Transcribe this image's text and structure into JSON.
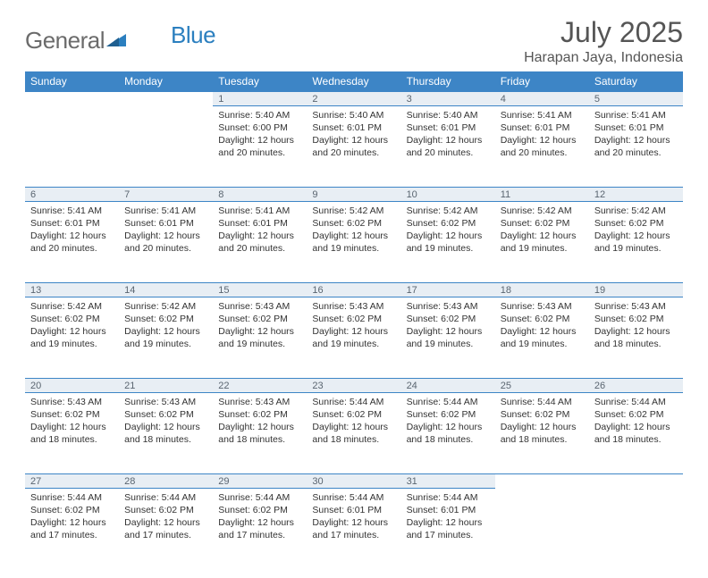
{
  "logo": {
    "part1": "General",
    "part2": "Blue"
  },
  "title": "July 2025",
  "location": "Harapan Jaya, Indonesia",
  "header_bg": "#3d85c6",
  "daynum_bg": "#e8eef4",
  "columns": [
    "Sunday",
    "Monday",
    "Tuesday",
    "Wednesday",
    "Thursday",
    "Friday",
    "Saturday"
  ],
  "weeks": [
    [
      null,
      null,
      {
        "n": "1",
        "sunrise": "5:40 AM",
        "sunset": "6:00 PM",
        "daylight": "12 hours and 20 minutes."
      },
      {
        "n": "2",
        "sunrise": "5:40 AM",
        "sunset": "6:01 PM",
        "daylight": "12 hours and 20 minutes."
      },
      {
        "n": "3",
        "sunrise": "5:40 AM",
        "sunset": "6:01 PM",
        "daylight": "12 hours and 20 minutes."
      },
      {
        "n": "4",
        "sunrise": "5:41 AM",
        "sunset": "6:01 PM",
        "daylight": "12 hours and 20 minutes."
      },
      {
        "n": "5",
        "sunrise": "5:41 AM",
        "sunset": "6:01 PM",
        "daylight": "12 hours and 20 minutes."
      }
    ],
    [
      {
        "n": "6",
        "sunrise": "5:41 AM",
        "sunset": "6:01 PM",
        "daylight": "12 hours and 20 minutes."
      },
      {
        "n": "7",
        "sunrise": "5:41 AM",
        "sunset": "6:01 PM",
        "daylight": "12 hours and 20 minutes."
      },
      {
        "n": "8",
        "sunrise": "5:41 AM",
        "sunset": "6:01 PM",
        "daylight": "12 hours and 20 minutes."
      },
      {
        "n": "9",
        "sunrise": "5:42 AM",
        "sunset": "6:02 PM",
        "daylight": "12 hours and 19 minutes."
      },
      {
        "n": "10",
        "sunrise": "5:42 AM",
        "sunset": "6:02 PM",
        "daylight": "12 hours and 19 minutes."
      },
      {
        "n": "11",
        "sunrise": "5:42 AM",
        "sunset": "6:02 PM",
        "daylight": "12 hours and 19 minutes."
      },
      {
        "n": "12",
        "sunrise": "5:42 AM",
        "sunset": "6:02 PM",
        "daylight": "12 hours and 19 minutes."
      }
    ],
    [
      {
        "n": "13",
        "sunrise": "5:42 AM",
        "sunset": "6:02 PM",
        "daylight": "12 hours and 19 minutes."
      },
      {
        "n": "14",
        "sunrise": "5:42 AM",
        "sunset": "6:02 PM",
        "daylight": "12 hours and 19 minutes."
      },
      {
        "n": "15",
        "sunrise": "5:43 AM",
        "sunset": "6:02 PM",
        "daylight": "12 hours and 19 minutes."
      },
      {
        "n": "16",
        "sunrise": "5:43 AM",
        "sunset": "6:02 PM",
        "daylight": "12 hours and 19 minutes."
      },
      {
        "n": "17",
        "sunrise": "5:43 AM",
        "sunset": "6:02 PM",
        "daylight": "12 hours and 19 minutes."
      },
      {
        "n": "18",
        "sunrise": "5:43 AM",
        "sunset": "6:02 PM",
        "daylight": "12 hours and 19 minutes."
      },
      {
        "n": "19",
        "sunrise": "5:43 AM",
        "sunset": "6:02 PM",
        "daylight": "12 hours and 18 minutes."
      }
    ],
    [
      {
        "n": "20",
        "sunrise": "5:43 AM",
        "sunset": "6:02 PM",
        "daylight": "12 hours and 18 minutes."
      },
      {
        "n": "21",
        "sunrise": "5:43 AM",
        "sunset": "6:02 PM",
        "daylight": "12 hours and 18 minutes."
      },
      {
        "n": "22",
        "sunrise": "5:43 AM",
        "sunset": "6:02 PM",
        "daylight": "12 hours and 18 minutes."
      },
      {
        "n": "23",
        "sunrise": "5:44 AM",
        "sunset": "6:02 PM",
        "daylight": "12 hours and 18 minutes."
      },
      {
        "n": "24",
        "sunrise": "5:44 AM",
        "sunset": "6:02 PM",
        "daylight": "12 hours and 18 minutes."
      },
      {
        "n": "25",
        "sunrise": "5:44 AM",
        "sunset": "6:02 PM",
        "daylight": "12 hours and 18 minutes."
      },
      {
        "n": "26",
        "sunrise": "5:44 AM",
        "sunset": "6:02 PM",
        "daylight": "12 hours and 18 minutes."
      }
    ],
    [
      {
        "n": "27",
        "sunrise": "5:44 AM",
        "sunset": "6:02 PM",
        "daylight": "12 hours and 17 minutes."
      },
      {
        "n": "28",
        "sunrise": "5:44 AM",
        "sunset": "6:02 PM",
        "daylight": "12 hours and 17 minutes."
      },
      {
        "n": "29",
        "sunrise": "5:44 AM",
        "sunset": "6:02 PM",
        "daylight": "12 hours and 17 minutes."
      },
      {
        "n": "30",
        "sunrise": "5:44 AM",
        "sunset": "6:01 PM",
        "daylight": "12 hours and 17 minutes."
      },
      {
        "n": "31",
        "sunrise": "5:44 AM",
        "sunset": "6:01 PM",
        "daylight": "12 hours and 17 minutes."
      },
      null,
      null
    ]
  ],
  "labels": {
    "sunrise": "Sunrise:",
    "sunset": "Sunset:",
    "daylight": "Daylight:"
  }
}
